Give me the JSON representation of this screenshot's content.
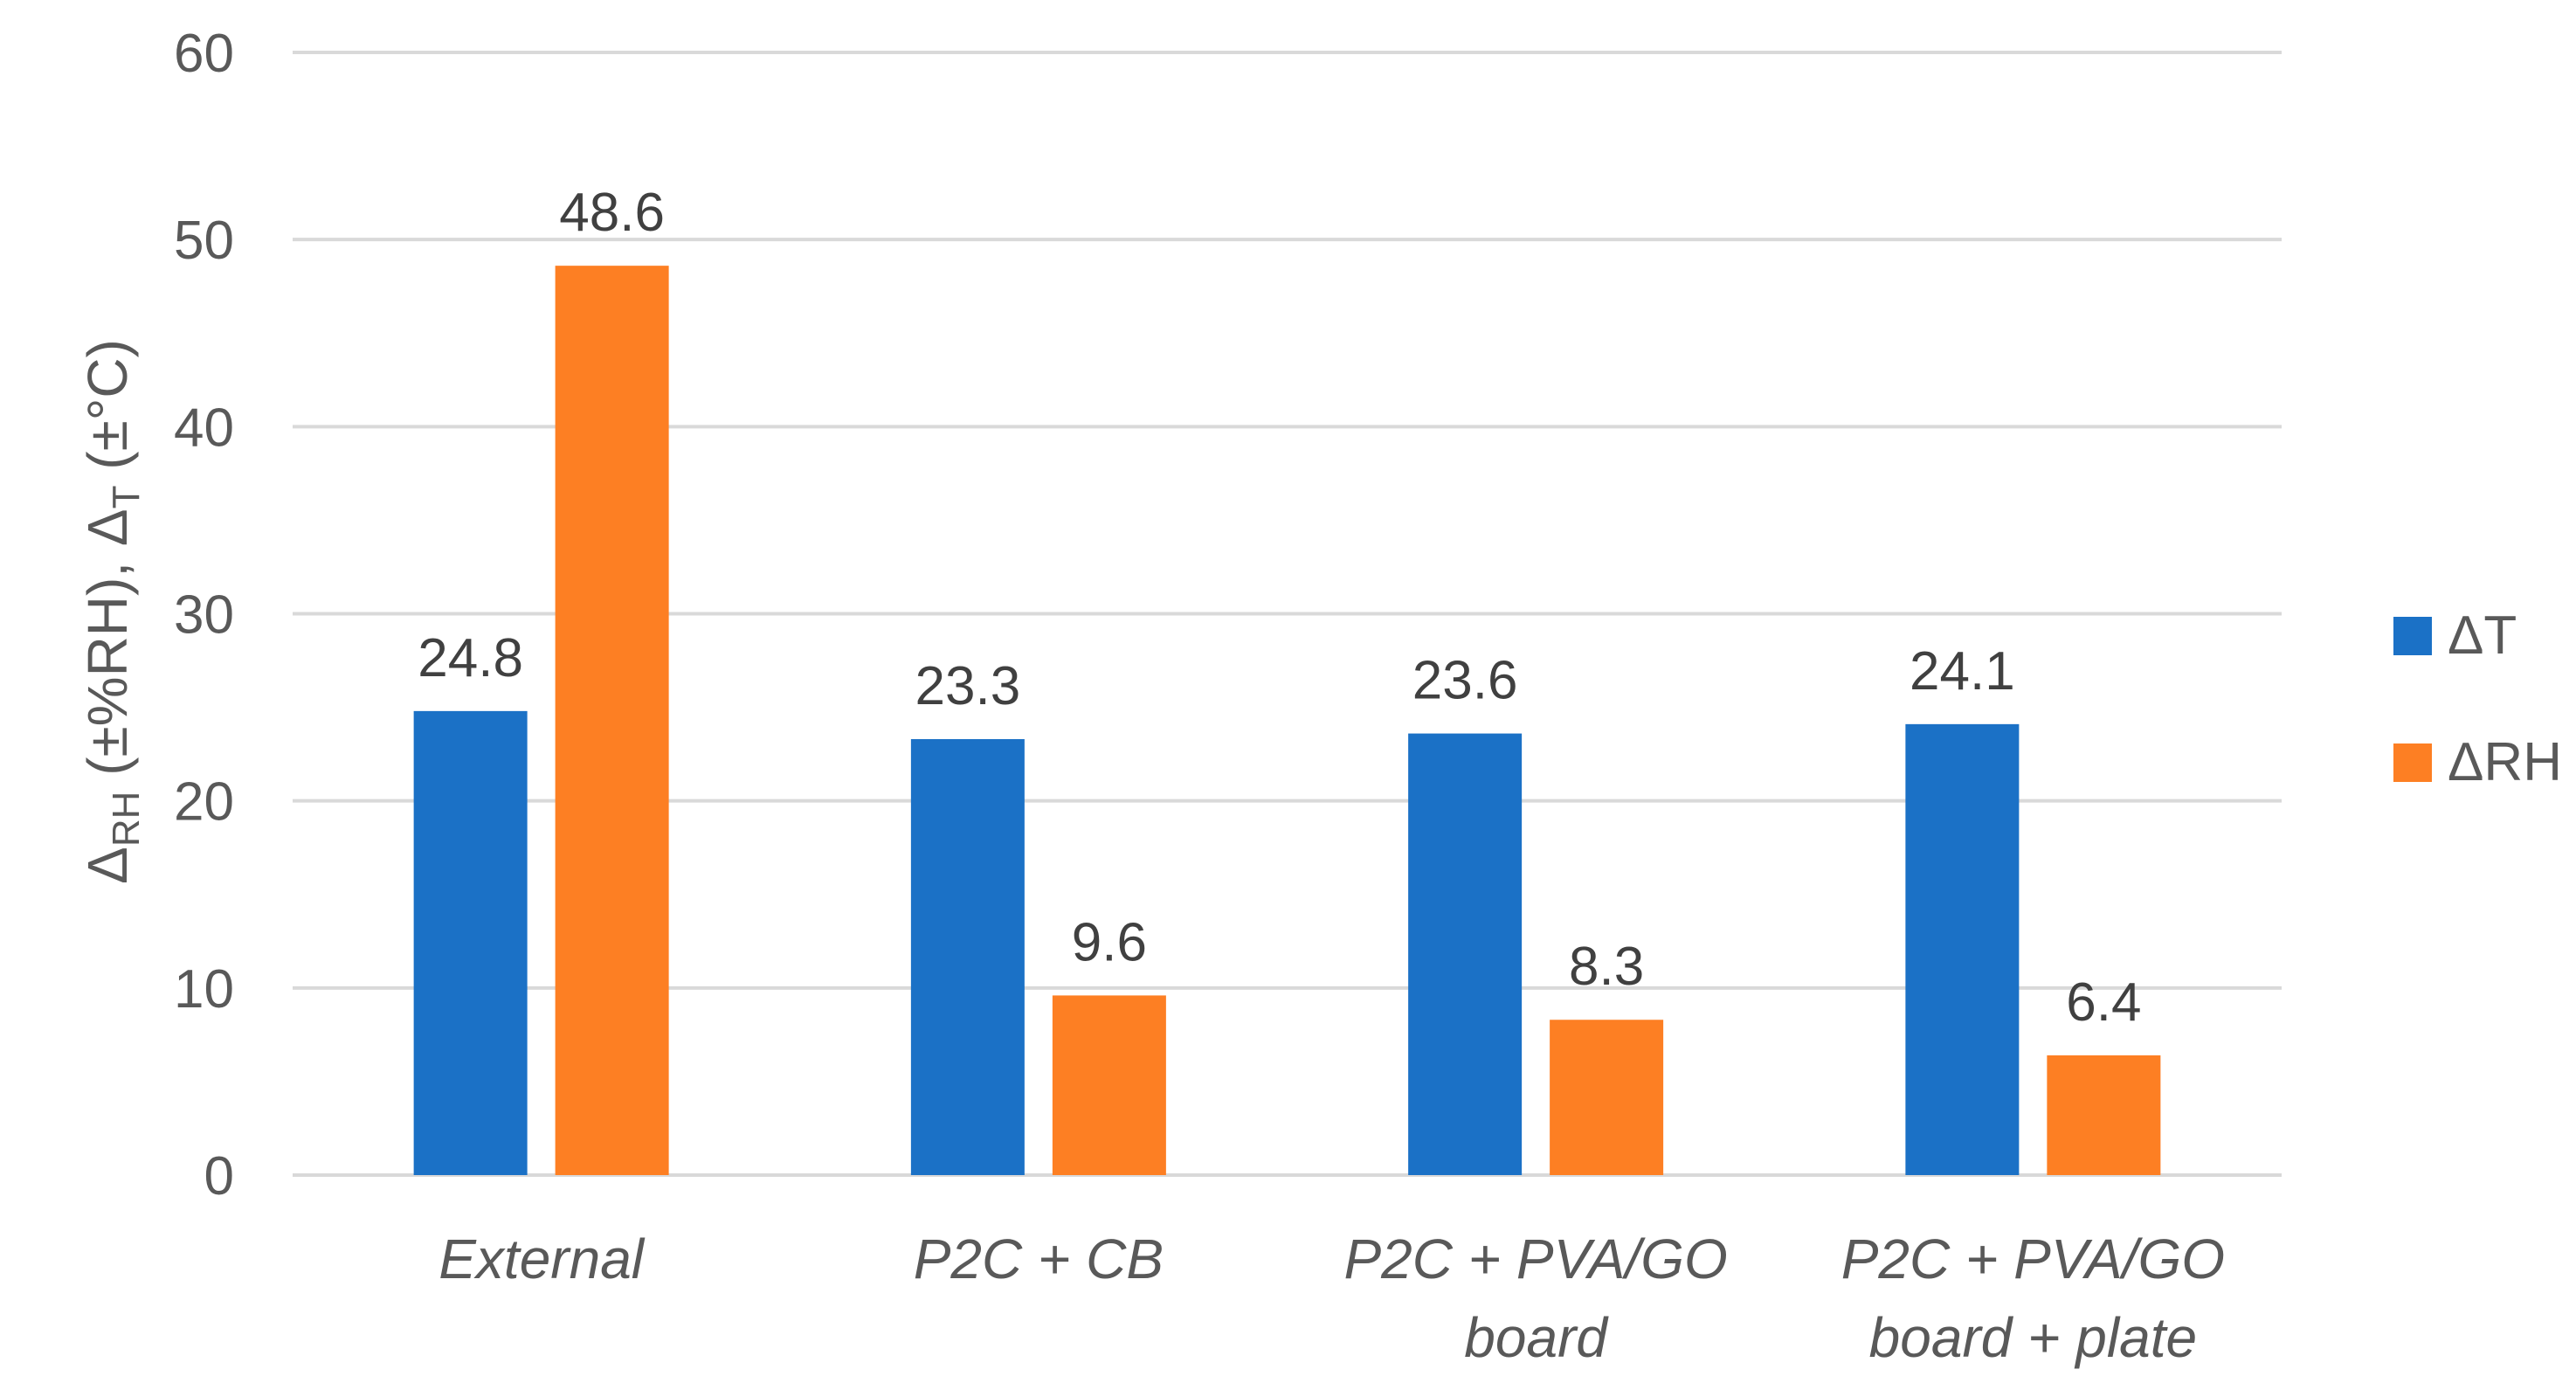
{
  "chart_data": {
    "type": "bar",
    "categories": [
      [
        "External"
      ],
      [
        "P2C + CB"
      ],
      [
        "P2C + PVA/GO",
        "board"
      ],
      [
        "P2C + PVA/GO",
        "board + plate"
      ]
    ],
    "series": [
      {
        "name": "ΔT",
        "color": "#1b71c6",
        "values": [
          24.8,
          23.3,
          23.6,
          24.1
        ]
      },
      {
        "name": "ΔRH",
        "color": "#fd7f23",
        "values": [
          48.6,
          9.6,
          8.3,
          6.4
        ]
      }
    ],
    "value_labels": [
      [
        "24.8",
        "23.3",
        "23.6",
        "24.1"
      ],
      [
        "48.6",
        "9.6",
        "8.3",
        "6.4"
      ]
    ],
    "yticks": [
      "0",
      "10",
      "20",
      "30",
      "40",
      "50",
      "60"
    ],
    "ylim": [
      0,
      60
    ],
    "ylabel": {
      "delta_rh": "Δ",
      "rh_sub": "RH",
      "middle": " (±%RH), ",
      "delta_t": "Δ",
      "t_sub": "T",
      "end": " (±°C)"
    },
    "title": "",
    "xlabel": "",
    "grid": true,
    "legend_position": "right"
  }
}
